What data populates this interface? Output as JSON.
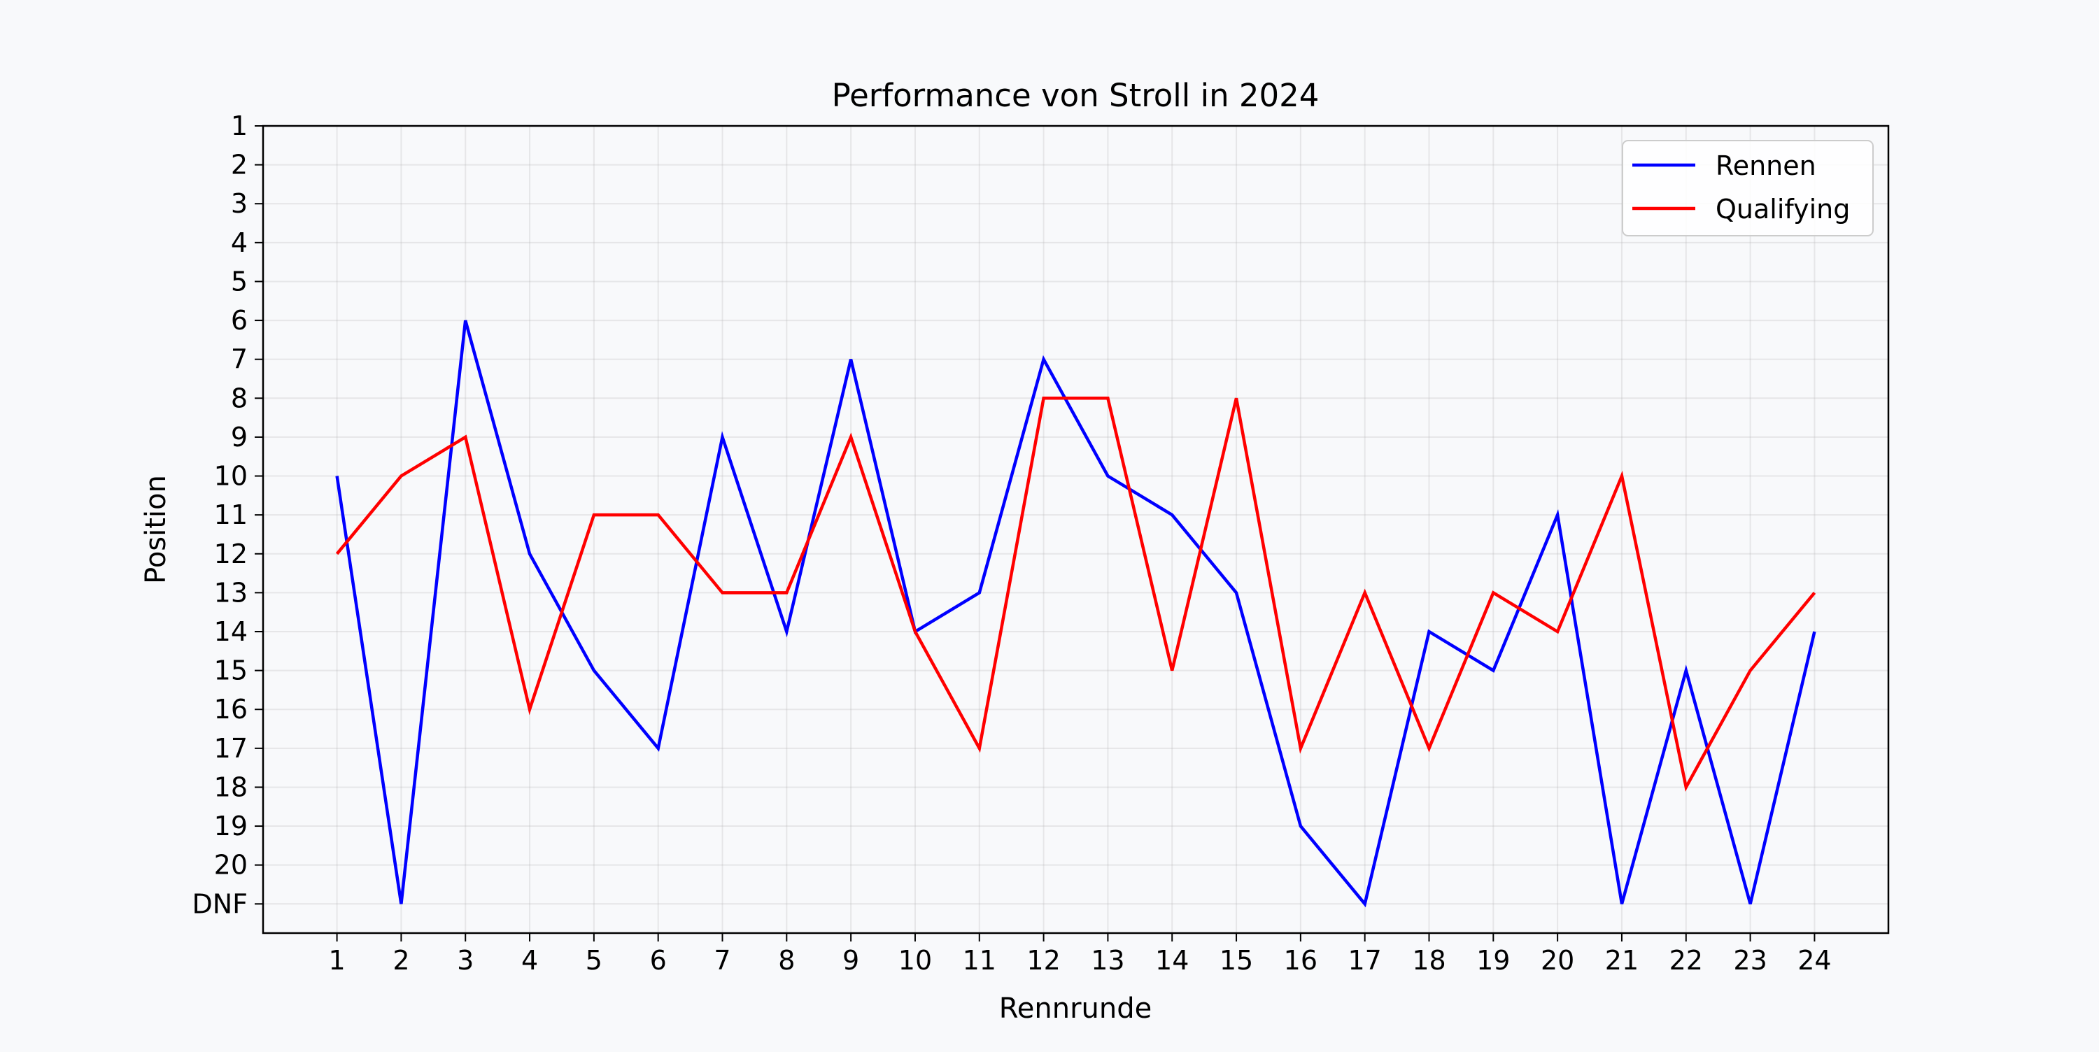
{
  "chart_data": {
    "type": "line",
    "title": "Performance von Stroll in 2024",
    "xlabel": "Rennrunde",
    "ylabel": "Position",
    "x": [
      1,
      2,
      3,
      4,
      5,
      6,
      7,
      8,
      9,
      10,
      11,
      12,
      13,
      14,
      15,
      16,
      17,
      18,
      19,
      20,
      21,
      22,
      23,
      24
    ],
    "x_tick_labels": [
      "1",
      "2",
      "3",
      "4",
      "5",
      "6",
      "7",
      "8",
      "9",
      "10",
      "11",
      "12",
      "13",
      "14",
      "15",
      "16",
      "17",
      "18",
      "19",
      "20",
      "21",
      "22",
      "23",
      "24"
    ],
    "y_ticks": [
      1,
      2,
      3,
      4,
      5,
      6,
      7,
      8,
      9,
      10,
      11,
      12,
      13,
      14,
      15,
      16,
      17,
      18,
      19,
      20,
      21
    ],
    "y_tick_labels": [
      "1",
      "2",
      "3",
      "4",
      "5",
      "6",
      "7",
      "8",
      "9",
      "10",
      "11",
      "12",
      "13",
      "14",
      "15",
      "16",
      "17",
      "18",
      "19",
      "20",
      "DNF"
    ],
    "y_inverted": true,
    "xlim": [
      -0.15,
      25.15
    ],
    "ylim": [
      21.75,
      1
    ],
    "grid": true,
    "legend_position": "top-right",
    "series": [
      {
        "name": "Rennen",
        "color": "#0000ff",
        "values": [
          10,
          21,
          6,
          12,
          15,
          17,
          9,
          14,
          7,
          14,
          13,
          7,
          10,
          11,
          13,
          19,
          21,
          14,
          15,
          11,
          21,
          15,
          21,
          14
        ]
      },
      {
        "name": "Qualifying",
        "color": "#ff0000",
        "values": [
          12,
          10,
          9,
          16,
          11,
          11,
          13,
          13,
          9,
          14,
          17,
          8,
          8,
          15,
          8,
          17,
          13,
          17,
          13,
          14,
          10,
          18,
          15,
          13
        ]
      }
    ]
  }
}
